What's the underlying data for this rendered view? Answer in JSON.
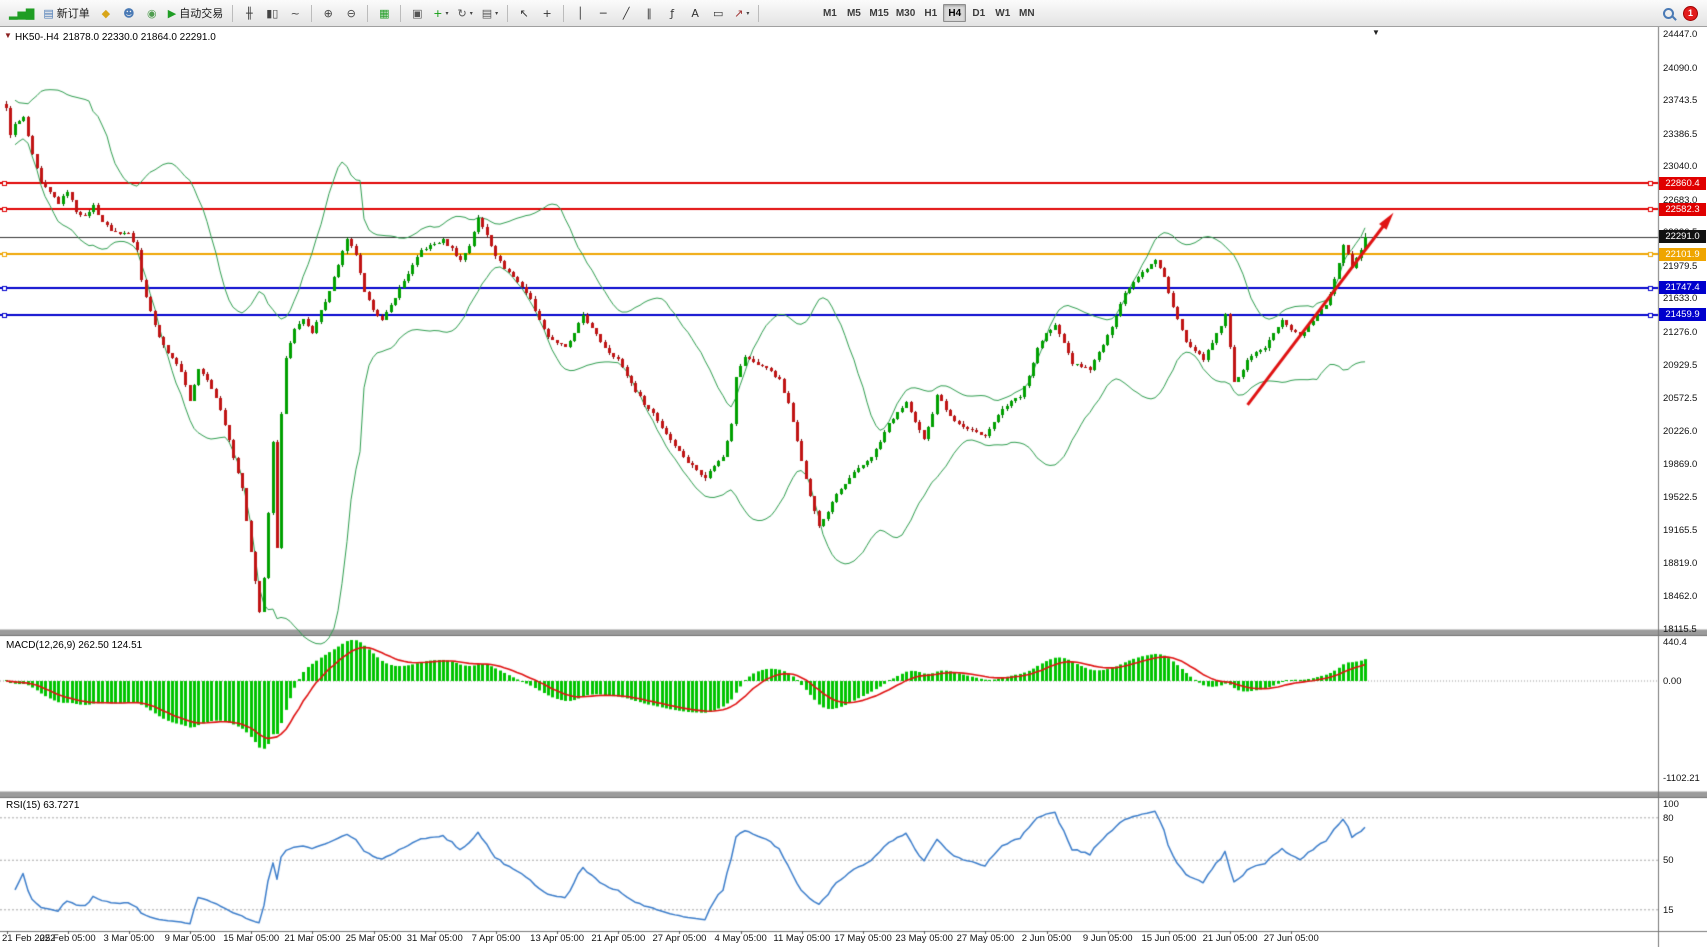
{
  "app": {
    "toolbar": {
      "caret_glyph": "▾",
      "items": [
        {
          "name": "new-chart-icon",
          "glyph": "▂▅▇",
          "color": "#1f9d24"
        },
        {
          "name": "new-order-button",
          "glyph": "▤",
          "color": "#4a7ab5",
          "label": "新订单"
        },
        {
          "name": "metaeditor-icon",
          "glyph": "◆",
          "color": "#d8a518"
        },
        {
          "name": "navigator-icon",
          "glyph": "☻",
          "color": "#4a7ab5"
        },
        {
          "name": "terminal-icon",
          "glyph": "◉",
          "color": "#4f9d4f"
        },
        {
          "name": "autotrading-button",
          "glyph": "▶",
          "color": "#1f9d24",
          "label": "自动交易"
        },
        {
          "sep": true
        },
        {
          "name": "ohlc-bars-icon",
          "glyph": "╫",
          "color": "#444444"
        },
        {
          "name": "candlestick-chart-icon",
          "glyph": "▮▯",
          "color": "#444444"
        },
        {
          "name": "line-chart-icon",
          "glyph": "~",
          "color": "#444444"
        },
        {
          "sep": true
        },
        {
          "name": "zoom-in-icon",
          "glyph": "⊕",
          "color": "#444444"
        },
        {
          "name": "zoom-out-icon",
          "glyph": "⊖",
          "color": "#444444"
        },
        {
          "sep": true
        },
        {
          "name": "tile-windows-icon",
          "glyph": "▦",
          "color": "#1f9d24"
        },
        {
          "sep": true
        },
        {
          "name": "arrange-windows-icon",
          "glyph": "▣",
          "color": "#555555"
        },
        {
          "name": "indicators-icon",
          "glyph": "+",
          "color": "#0f9d0f",
          "caret": true
        },
        {
          "name": "periods-icon",
          "glyph": "↻",
          "color": "#555555",
          "caret": true
        },
        {
          "name": "templates-icon",
          "glyph": "▤",
          "color": "#555555",
          "caret": true
        },
        {
          "sep": true
        },
        {
          "name": "cursor-icon",
          "glyph": "↖",
          "color": "#333333"
        },
        {
          "name": "crosshair-icon",
          "glyph": "+",
          "color": "#333333"
        },
        {
          "sep": true
        },
        {
          "name": "vertical-line-icon",
          "glyph": "│",
          "color": "#333333"
        },
        {
          "name": "horizontal-line-icon",
          "glyph": "─",
          "color": "#333333"
        },
        {
          "name": "trendline-icon",
          "glyph": "╱",
          "color": "#333333"
        },
        {
          "name": "channel-icon",
          "glyph": "∥",
          "color": "#333333"
        },
        {
          "name": "fibonacci-icon",
          "glyph": "ƒ",
          "color": "#333333"
        },
        {
          "name": "text-icon",
          "glyph": "A",
          "color": "#333333"
        },
        {
          "name": "text-label-icon",
          "glyph": "▭",
          "color": "#333333"
        },
        {
          "name": "arrows-icon",
          "glyph": "↗",
          "color": "#a03030",
          "caret": true
        },
        {
          "sep": true
        }
      ],
      "timeframes": [
        "M1",
        "M5",
        "M15",
        "M30",
        "H1",
        "H4",
        "D1",
        "W1",
        "MN"
      ],
      "active_timeframe": "H4",
      "notification_count": "1"
    },
    "chart": {
      "symbol_period": "HK50-.H4",
      "ohlc_text": "21878.0 22330.0 21864.0 22291.0",
      "collapse_glyph": "▼",
      "shift_glyph": "▼"
    }
  },
  "chart_data": {
    "type": "candlestick",
    "symbol": "HK50-",
    "timeframe": "H4",
    "current_ohlc": {
      "open": 21878.0,
      "high": 22330.0,
      "low": 21864.0,
      "close": 22291.0
    },
    "price_axis": {
      "max": 24447.0,
      "min": 18115.5,
      "ticks": [
        "24447.0",
        "24090.0",
        "23743.5",
        "23386.5",
        "23040.0",
        "22683.0",
        "22336.5",
        "21979.5",
        "21633.0",
        "21276.0",
        "20929.5",
        "20572.5",
        "20226.0",
        "19869.0",
        "19522.5",
        "19165.5",
        "18819.0",
        "18462.0",
        "18115.5"
      ]
    },
    "time_axis": [
      "21 Feb 2022",
      "25 Feb 05:00",
      "3 Mar 05:00",
      "9 Mar 05:00",
      "15 Mar 05:00",
      "21 Mar 05:00",
      "25 Mar 05:00",
      "31 Mar 05:00",
      "7 Apr 05:00",
      "13 Apr 05:00",
      "21 Apr 05:00",
      "27 Apr 05:00",
      "4 May 05:00",
      "11 May 05:00",
      "17 May 05:00",
      "23 May 05:00",
      "27 May 05:00",
      "2 Jun 05:00",
      "9 Jun 05:00",
      "15 Jun 05:00",
      "21 Jun 05:00",
      "27 Jun 05:00"
    ],
    "candles": {
      "count": 312,
      "up_color": "#00A000",
      "up_wick": "#006400",
      "down_color": "#C01414",
      "down_wick": "#7c0e0e",
      "anchors": [
        [
          0,
          23650
        ],
        [
          1,
          23380
        ],
        [
          2,
          23480
        ],
        [
          4,
          23560
        ],
        [
          6,
          23160
        ],
        [
          8,
          22860
        ],
        [
          10,
          22760
        ],
        [
          12,
          22650
        ],
        [
          14,
          22780
        ],
        [
          16,
          22560
        ],
        [
          18,
          22500
        ],
        [
          20,
          22620
        ],
        [
          22,
          22450
        ],
        [
          24,
          22360
        ],
        [
          26,
          22320
        ],
        [
          28,
          22340
        ],
        [
          30,
          22150
        ],
        [
          31,
          21830
        ],
        [
          33,
          21500
        ],
        [
          34,
          21340
        ],
        [
          36,
          21120
        ],
        [
          38,
          21000
        ],
        [
          40,
          20860
        ],
        [
          42,
          20550
        ],
        [
          44,
          20880
        ],
        [
          46,
          20760
        ],
        [
          48,
          20580
        ],
        [
          50,
          20300
        ],
        [
          52,
          19950
        ],
        [
          54,
          19600
        ],
        [
          56,
          18950
        ],
        [
          58,
          18300
        ],
        [
          59,
          18650
        ],
        [
          60,
          19350
        ],
        [
          61,
          20100
        ],
        [
          62,
          18990
        ],
        [
          63,
          20400
        ],
        [
          64,
          21000
        ],
        [
          66,
          21300
        ],
        [
          68,
          21420
        ],
        [
          70,
          21260
        ],
        [
          72,
          21500
        ],
        [
          74,
          21720
        ],
        [
          76,
          22000
        ],
        [
          78,
          22260
        ],
        [
          80,
          22100
        ],
        [
          82,
          21690
        ],
        [
          84,
          21520
        ],
        [
          86,
          21400
        ],
        [
          88,
          21560
        ],
        [
          90,
          21740
        ],
        [
          92,
          21900
        ],
        [
          95,
          22150
        ],
        [
          98,
          22210
        ],
        [
          100,
          22250
        ],
        [
          102,
          22160
        ],
        [
          104,
          22040
        ],
        [
          106,
          22200
        ],
        [
          108,
          22480
        ],
        [
          110,
          22310
        ],
        [
          112,
          22090
        ],
        [
          114,
          21960
        ],
        [
          116,
          21860
        ],
        [
          118,
          21760
        ],
        [
          120,
          21620
        ],
        [
          122,
          21400
        ],
        [
          124,
          21230
        ],
        [
          126,
          21160
        ],
        [
          128,
          21110
        ],
        [
          130,
          21260
        ],
        [
          132,
          21460
        ],
        [
          134,
          21310
        ],
        [
          136,
          21170
        ],
        [
          138,
          21060
        ],
        [
          140,
          20990
        ],
        [
          142,
          20810
        ],
        [
          144,
          20650
        ],
        [
          146,
          20510
        ],
        [
          148,
          20410
        ],
        [
          150,
          20260
        ],
        [
          152,
          20130
        ],
        [
          154,
          20010
        ],
        [
          156,
          19890
        ],
        [
          158,
          19810
        ],
        [
          160,
          19730
        ],
        [
          162,
          19860
        ],
        [
          164,
          19950
        ],
        [
          166,
          20310
        ],
        [
          167,
          20810
        ],
        [
          169,
          21010
        ],
        [
          171,
          20960
        ],
        [
          173,
          20910
        ],
        [
          175,
          20860
        ],
        [
          177,
          20760
        ],
        [
          179,
          20510
        ],
        [
          181,
          20130
        ],
        [
          183,
          19710
        ],
        [
          185,
          19360
        ],
        [
          186,
          19210
        ],
        [
          188,
          19360
        ],
        [
          190,
          19550
        ],
        [
          192,
          19660
        ],
        [
          194,
          19780
        ],
        [
          196,
          19860
        ],
        [
          198,
          19950
        ],
        [
          200,
          20110
        ],
        [
          202,
          20300
        ],
        [
          204,
          20410
        ],
        [
          206,
          20530
        ],
        [
          208,
          20310
        ],
        [
          210,
          20130
        ],
        [
          212,
          20410
        ],
        [
          213,
          20610
        ],
        [
          215,
          20460
        ],
        [
          217,
          20330
        ],
        [
          220,
          20240
        ],
        [
          222,
          20210
        ],
        [
          224,
          20180
        ],
        [
          226,
          20310
        ],
        [
          228,
          20470
        ],
        [
          230,
          20530
        ],
        [
          232,
          20590
        ],
        [
          234,
          20810
        ],
        [
          236,
          21110
        ],
        [
          238,
          21260
        ],
        [
          240,
          21340
        ],
        [
          242,
          21160
        ],
        [
          244,
          20940
        ],
        [
          246,
          20910
        ],
        [
          248,
          20880
        ],
        [
          250,
          21060
        ],
        [
          252,
          21230
        ],
        [
          254,
          21460
        ],
        [
          256,
          21690
        ],
        [
          258,
          21810
        ],
        [
          260,
          21920
        ],
        [
          263,
          22040
        ],
        [
          265,
          21860
        ],
        [
          266,
          21690
        ],
        [
          268,
          21410
        ],
        [
          270,
          21170
        ],
        [
          272,
          21060
        ],
        [
          274,
          20990
        ],
        [
          276,
          21160
        ],
        [
          278,
          21340
        ],
        [
          279,
          21460
        ],
        [
          281,
          20760
        ],
        [
          283,
          20860
        ],
        [
          284,
          20990
        ],
        [
          286,
          21060
        ],
        [
          288,
          21110
        ],
        [
          290,
          21260
        ],
        [
          292,
          21400
        ],
        [
          294,
          21310
        ],
        [
          296,
          21230
        ],
        [
          298,
          21340
        ],
        [
          300,
          21460
        ],
        [
          302,
          21560
        ],
        [
          303,
          21690
        ],
        [
          305,
          22010
        ],
        [
          306,
          22210
        ],
        [
          307,
          22110
        ],
        [
          308,
          21970
        ],
        [
          309,
          22060
        ],
        [
          310,
          22160
        ],
        [
          311,
          22291
        ]
      ]
    },
    "bollinger": {
      "period": 20,
      "deviation": 2,
      "color": "#2f9e4f"
    },
    "horizontal_lines": [
      {
        "price": 22860.4,
        "label": "22860.4",
        "color": "#e00000"
      },
      {
        "price": 22582.3,
        "label": "22582.3",
        "color": "#e00000"
      },
      {
        "price": 22101.9,
        "label": "22101.9",
        "color": "#efa500"
      },
      {
        "price": 21747.4,
        "label": "21747.4",
        "color": "#0000cd"
      },
      {
        "price": 21459.9,
        "label": "21459.9",
        "color": "#0000cd"
      }
    ],
    "current_price_line": {
      "price": 22291.0,
      "label": "22291.0",
      "color": "#333333",
      "tag_color": "#111111"
    },
    "trend_arrow": {
      "from_index": 284,
      "from_price": 20500,
      "to_index": 316,
      "to_price": 22460,
      "color": "#e01212"
    },
    "macd": {
      "name": "MACD(12,26,9)",
      "values_text": "262.50 124.51",
      "main_value": 262.5,
      "signal_line_value": 124.51,
      "fast": 12,
      "slow": 26,
      "signal": 9,
      "histogram_color": "#00c400",
      "signal_color": "#e01212",
      "axis_ticks": [
        {
          "text": "440.4",
          "value": 440.4
        },
        {
          "text": "0.00",
          "value": 0
        },
        {
          "text": "-1102.21",
          "value": -1102.21
        }
      ]
    },
    "rsi": {
      "name": "RSI(15)",
      "value_text": "63.7271",
      "value": 63.7271,
      "period": 15,
      "line_color": "#3d7ecb",
      "levels": [
        80,
        50,
        15
      ],
      "axis_ticks": [
        {
          "text": "100",
          "value": 100
        },
        {
          "text": "80",
          "value": 80
        },
        {
          "text": "50",
          "value": 50
        },
        {
          "text": "15",
          "value": 15
        }
      ]
    }
  }
}
